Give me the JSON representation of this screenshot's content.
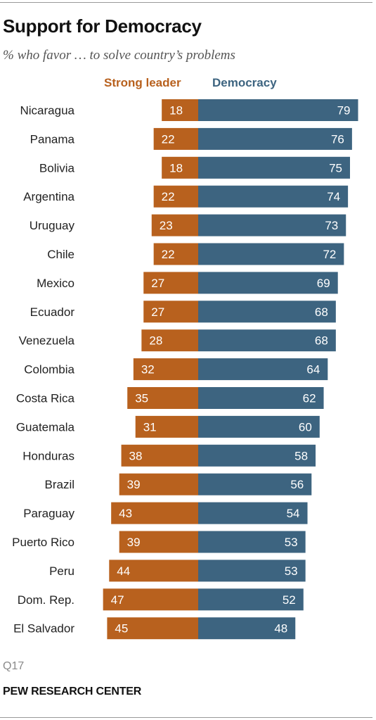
{
  "header": {
    "title": "Support for Democracy",
    "subtitle": "% who favor … to solve country’s problems"
  },
  "legend": {
    "strong_leader": "Strong leader",
    "democracy": "Democracy"
  },
  "colors": {
    "strong_leader": "#b8611e",
    "democracy": "#3d6480",
    "bar_label": "#ffffff",
    "category_label": "#222222"
  },
  "chart_data": {
    "type": "bar",
    "orientation": "horizontal-diverging",
    "title": "Support for Democracy",
    "subtitle": "% who favor … to solve country’s problems",
    "categories": [
      "Nicaragua",
      "Panama",
      "Bolivia",
      "Argentina",
      "Uruguay",
      "Chile",
      "Mexico",
      "Ecuador",
      "Venezuela",
      "Colombia",
      "Costa Rica",
      "Guatemala",
      "Honduras",
      "Brazil",
      "Paraguay",
      "Puerto Rico",
      "Peru",
      "Dom. Rep.",
      "El Salvador"
    ],
    "series": [
      {
        "name": "Strong leader",
        "values": [
          18,
          22,
          18,
          22,
          23,
          22,
          27,
          27,
          28,
          32,
          35,
          31,
          38,
          39,
          43,
          39,
          44,
          47,
          45
        ]
      },
      {
        "name": "Democracy",
        "values": [
          79,
          76,
          75,
          74,
          73,
          72,
          69,
          68,
          68,
          64,
          62,
          60,
          58,
          56,
          54,
          53,
          53,
          52,
          48
        ]
      }
    ],
    "legend": "top",
    "grid": false,
    "data_labels": true
  },
  "footer": {
    "note": "Q17",
    "source": "PEW RESEARCH CENTER"
  }
}
